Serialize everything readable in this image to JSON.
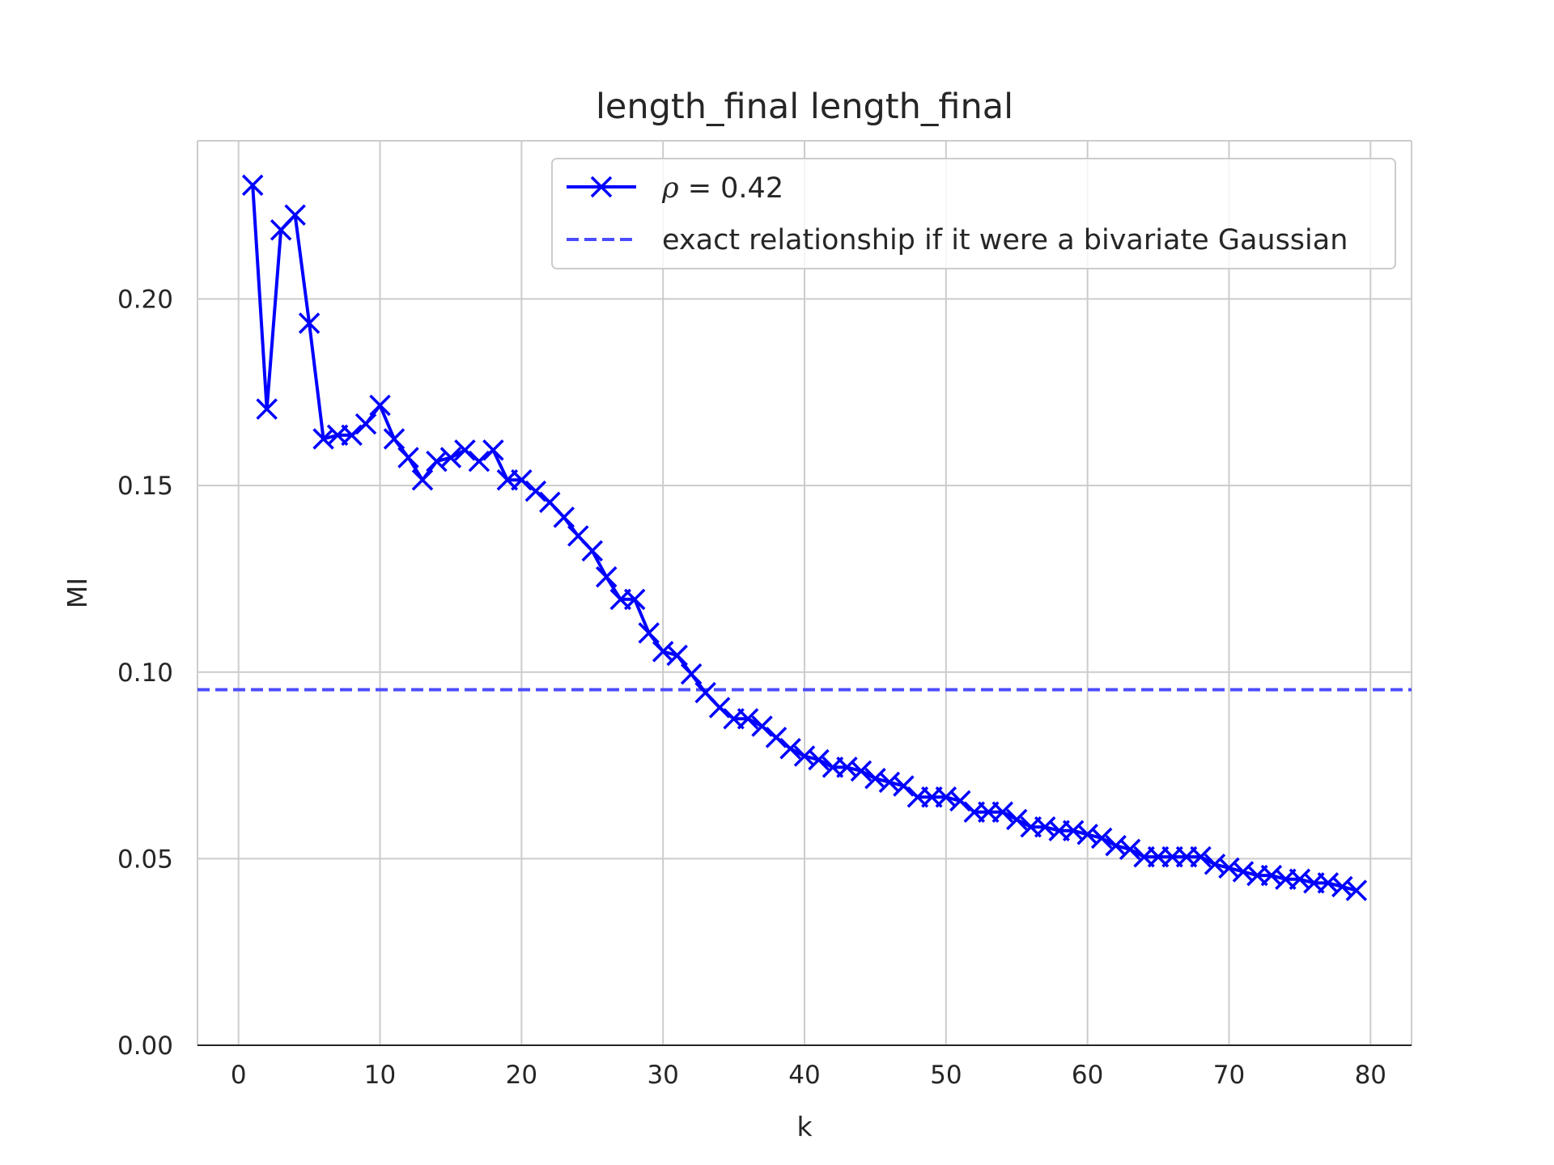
{
  "chart_data": {
    "type": "line",
    "title": "length_final length_final",
    "xlabel": "k",
    "ylabel": "MI",
    "xlim": [
      -2.9,
      82.9
    ],
    "ylim": [
      0.0,
      0.2424
    ],
    "xticks": [
      0,
      10,
      20,
      30,
      40,
      50,
      60,
      70,
      80
    ],
    "yticks": [
      0.0,
      0.05,
      0.1,
      0.15,
      0.2
    ],
    "xtick_labels": [
      "0",
      "10",
      "20",
      "30",
      "40",
      "50",
      "60",
      "70",
      "80"
    ],
    "ytick_labels": [
      "0.00",
      "0.05",
      "0.10",
      "0.15",
      "0.20"
    ],
    "grid": true,
    "legend_position": "top-right",
    "series": [
      {
        "name": "ρ = 0.42",
        "name_parts": {
          "symbol": "ρ",
          "rest": " = 0.42"
        },
        "color": "#0000ff",
        "marker": "x",
        "style": "solid",
        "x": [
          1,
          2,
          3,
          4,
          5,
          6,
          7,
          8,
          9,
          10,
          11,
          12,
          13,
          14,
          15,
          16,
          17,
          18,
          19,
          20,
          21,
          22,
          23,
          24,
          25,
          26,
          27,
          28,
          29,
          30,
          31,
          32,
          33,
          34,
          35,
          36,
          37,
          38,
          39,
          40,
          41,
          42,
          43,
          44,
          45,
          46,
          47,
          48,
          49,
          50,
          51,
          52,
          53,
          54,
          55,
          56,
          57,
          58,
          59,
          60,
          61,
          62,
          63,
          64,
          65,
          66,
          67,
          68,
          69,
          70,
          71,
          72,
          73,
          74,
          75,
          76,
          77,
          78,
          79
        ],
        "y": [
          0.2305,
          0.1705,
          0.2185,
          0.2225,
          0.1935,
          0.1625,
          0.1635,
          0.1635,
          0.1665,
          0.1715,
          0.1625,
          0.1575,
          0.1515,
          0.1565,
          0.1575,
          0.1595,
          0.1565,
          0.1595,
          0.1515,
          0.1515,
          0.1485,
          0.1455,
          0.1415,
          0.1365,
          0.1325,
          0.1255,
          0.1195,
          0.1195,
          0.1105,
          0.1055,
          0.1045,
          0.0995,
          0.0945,
          0.0905,
          0.0875,
          0.0875,
          0.0855,
          0.0825,
          0.0795,
          0.0775,
          0.0765,
          0.0745,
          0.0745,
          0.0735,
          0.0715,
          0.0705,
          0.0695,
          0.0665,
          0.0665,
          0.0665,
          0.0655,
          0.0625,
          0.0625,
          0.0625,
          0.0605,
          0.0585,
          0.0585,
          0.0575,
          0.0575,
          0.0565,
          0.0555,
          0.0535,
          0.0525,
          0.0505,
          0.0505,
          0.0505,
          0.0505,
          0.0505,
          0.0485,
          0.0475,
          0.0465,
          0.0455,
          0.0455,
          0.0445,
          0.0445,
          0.0435,
          0.0435,
          0.0425,
          0.0415
        ]
      },
      {
        "name": "exact relationship if it were a bivariate Gaussian",
        "color": "#4c4cff",
        "style": "dashed",
        "y_constant": 0.0953
      }
    ]
  }
}
